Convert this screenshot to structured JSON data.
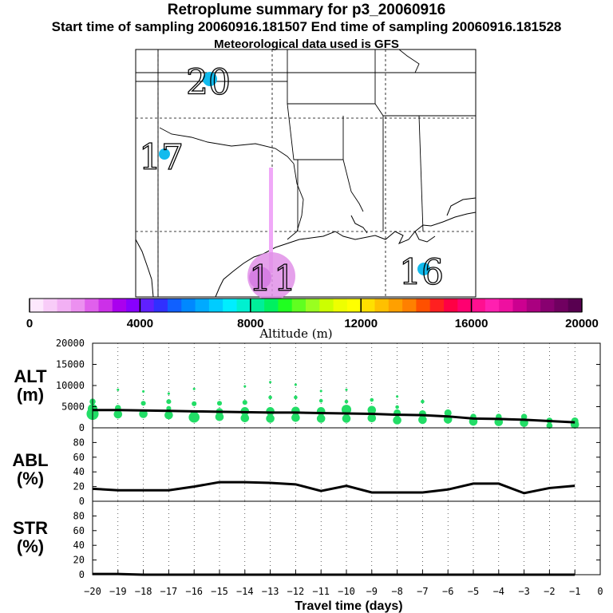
{
  "titles": {
    "main": "Retroplume summary for p3_20060916",
    "sampling": "Start time of sampling 20060916.181507     End time of sampling 20060916.181528",
    "met": "Meteorological data used is GFS"
  },
  "colors": {
    "plume_dot": "#22dd66",
    "line": "#000000",
    "label_dot": "#11bbee",
    "column": "#f0a8f8",
    "source_blob": "#e090e8"
  },
  "map": {
    "day_labels": [
      {
        "text": "20"
      },
      {
        "text": "17"
      },
      {
        "text": "16"
      },
      {
        "text": "1"
      },
      {
        "text": "1"
      }
    ]
  },
  "colorbar": {
    "ticks": [
      "0",
      "4000",
      "8000",
      "12000",
      "16000",
      "20000"
    ],
    "label": "Altitude (m)",
    "colors": [
      "#fde8fd",
      "#f8ccf8",
      "#f2b0f4",
      "#ec90f0",
      "#e060ec",
      "#cc30e8",
      "#aa00ee",
      "#8800ff",
      "#6020ff",
      "#3030ff",
      "#1060ff",
      "#0088ff",
      "#00aaff",
      "#00ccff",
      "#00eeff",
      "#00f0d0",
      "#00ee99",
      "#00f060",
      "#20ff20",
      "#60ff20",
      "#99ff20",
      "#ccff00",
      "#eeff00",
      "#ffff00",
      "#ffe000",
      "#ffc000",
      "#ffa000",
      "#ff8000",
      "#ff5000",
      "#ff2020",
      "#ff0044",
      "#ff0070",
      "#ff1090",
      "#ff20b0",
      "#ee10a0",
      "#cc0090",
      "#aa0080",
      "#880070",
      "#700060",
      "#580050"
    ]
  },
  "chart_data": [
    {
      "type": "scatter",
      "name": "alt",
      "ylabel": "ALT\n(m)",
      "ylabel_lines": [
        "ALT",
        "(m)"
      ],
      "yticks": [
        "20000",
        "15000",
        "10000",
        "5000",
        "0"
      ],
      "ylim": [
        0,
        20000
      ],
      "xlim": [
        -20,
        0
      ],
      "points": [
        {
          "x": -20,
          "y": 3300,
          "s": 9
        },
        {
          "x": -20,
          "y": 4500,
          "s": 7
        },
        {
          "x": -20,
          "y": 6200,
          "s": 4
        },
        {
          "x": -19,
          "y": 3200,
          "s": 6
        },
        {
          "x": -19,
          "y": 4700,
          "s": 4
        },
        {
          "x": -19,
          "y": 9000,
          "s": 1
        },
        {
          "x": -18,
          "y": 3300,
          "s": 6
        },
        {
          "x": -18,
          "y": 5800,
          "s": 3
        },
        {
          "x": -18,
          "y": 8600,
          "s": 1
        },
        {
          "x": -17,
          "y": 3000,
          "s": 6
        },
        {
          "x": -17,
          "y": 4600,
          "s": 3
        },
        {
          "x": -17,
          "y": 6200,
          "s": 3
        },
        {
          "x": -17,
          "y": 8100,
          "s": 1
        },
        {
          "x": -16,
          "y": 2500,
          "s": 8
        },
        {
          "x": -16,
          "y": 3300,
          "s": 5
        },
        {
          "x": -16,
          "y": 5700,
          "s": 3
        },
        {
          "x": -16,
          "y": 9200,
          "s": 1
        },
        {
          "x": -15,
          "y": 2600,
          "s": 6
        },
        {
          "x": -15,
          "y": 3800,
          "s": 5
        },
        {
          "x": -15,
          "y": 5800,
          "s": 3
        },
        {
          "x": -14,
          "y": 2300,
          "s": 6
        },
        {
          "x": -14,
          "y": 3900,
          "s": 6
        },
        {
          "x": -14,
          "y": 6000,
          "s": 3
        },
        {
          "x": -14,
          "y": 9800,
          "s": 1
        },
        {
          "x": -13,
          "y": 2200,
          "s": 6
        },
        {
          "x": -13,
          "y": 3900,
          "s": 6
        },
        {
          "x": -13,
          "y": 7200,
          "s": 2
        },
        {
          "x": -13,
          "y": 10800,
          "s": 1
        },
        {
          "x": -12,
          "y": 2400,
          "s": 6
        },
        {
          "x": -12,
          "y": 4000,
          "s": 6
        },
        {
          "x": -12,
          "y": 7200,
          "s": 2
        },
        {
          "x": -12,
          "y": 10200,
          "s": 1
        },
        {
          "x": -11,
          "y": 2200,
          "s": 6
        },
        {
          "x": -11,
          "y": 3900,
          "s": 6
        },
        {
          "x": -11,
          "y": 6400,
          "s": 2
        },
        {
          "x": -11,
          "y": 8700,
          "s": 1
        },
        {
          "x": -10,
          "y": 2200,
          "s": 6
        },
        {
          "x": -10,
          "y": 4300,
          "s": 7
        },
        {
          "x": -10,
          "y": 6200,
          "s": 2
        },
        {
          "x": -10,
          "y": 9000,
          "s": 1
        },
        {
          "x": -9,
          "y": 2300,
          "s": 6
        },
        {
          "x": -9,
          "y": 4200,
          "s": 6
        },
        {
          "x": -9,
          "y": 6600,
          "s": 2
        },
        {
          "x": -8,
          "y": 1800,
          "s": 6
        },
        {
          "x": -8,
          "y": 3500,
          "s": 5
        },
        {
          "x": -8,
          "y": 4900,
          "s": 2
        },
        {
          "x": -8,
          "y": 7400,
          "s": 1
        },
        {
          "x": -7,
          "y": 1900,
          "s": 6
        },
        {
          "x": -7,
          "y": 3300,
          "s": 5
        },
        {
          "x": -7,
          "y": 6200,
          "s": 2
        },
        {
          "x": -6,
          "y": 2000,
          "s": 6
        },
        {
          "x": -6,
          "y": 3500,
          "s": 5
        },
        {
          "x": -5,
          "y": 1500,
          "s": 6
        },
        {
          "x": -5,
          "y": 2600,
          "s": 4
        },
        {
          "x": -4,
          "y": 1400,
          "s": 6
        },
        {
          "x": -4,
          "y": 2600,
          "s": 4
        },
        {
          "x": -3,
          "y": 1200,
          "s": 6
        },
        {
          "x": -3,
          "y": 2600,
          "s": 4
        },
        {
          "x": -2,
          "y": 500,
          "s": 4
        },
        {
          "x": -2,
          "y": 1700,
          "s": 4
        },
        {
          "x": -1,
          "y": 800,
          "s": 6
        },
        {
          "x": -1,
          "y": 1600,
          "s": 5
        }
      ],
      "line": {
        "x": [
          -20,
          -19,
          -18,
          -17,
          -16,
          -15,
          -14,
          -13,
          -12,
          -11,
          -10,
          -9,
          -8,
          -7,
          -6,
          -5,
          -4,
          -3,
          -2,
          -1
        ],
        "y": [
          4200,
          4200,
          4100,
          4000,
          3900,
          3800,
          3700,
          3600,
          3600,
          3500,
          3400,
          3300,
          3100,
          3000,
          2700,
          2200,
          2100,
          1900,
          1600,
          1300
        ]
      }
    },
    {
      "type": "line",
      "name": "abl",
      "ylabel_lines": [
        "ABL",
        "(%)"
      ],
      "yticks": [
        "80",
        "60",
        "40",
        "20",
        "0"
      ],
      "ylim": [
        0,
        100
      ],
      "xlim": [
        -20,
        0
      ],
      "x": [
        -20,
        -19,
        -18,
        -17,
        -16,
        -15,
        -14,
        -13,
        -12,
        -11,
        -10,
        -9,
        -8,
        -7,
        -6,
        -5,
        -4,
        -3,
        -2,
        -1
      ],
      "values": [
        17,
        15,
        15,
        15,
        20,
        26,
        26,
        25,
        23,
        14,
        21,
        12,
        12,
        12,
        16,
        24,
        24,
        11,
        18,
        21
      ]
    },
    {
      "type": "line",
      "name": "str",
      "ylabel_lines": [
        "STR",
        "(%)"
      ],
      "yticks": [
        "80",
        "60",
        "40",
        "20",
        "0"
      ],
      "ylim": [
        0,
        100
      ],
      "xlim": [
        -20,
        0
      ],
      "x": [
        -20,
        -19,
        -18,
        -17,
        -16,
        -15,
        -14,
        -13,
        -12,
        -11,
        -10,
        -9,
        -8,
        -7,
        -6,
        -5,
        -4,
        -3,
        -2,
        -1
      ],
      "values": [
        1,
        1,
        0,
        0,
        0,
        0,
        0,
        0,
        0,
        0,
        0,
        0,
        0,
        0,
        0,
        0,
        0,
        0,
        0,
        0
      ]
    }
  ],
  "xaxis": {
    "ticks": [
      "−20",
      "−19",
      "−18",
      "−17",
      "−16",
      "−15",
      "−14",
      "−13",
      "−12",
      "−11",
      "−10",
      "−9",
      "−8",
      "−7",
      "−6",
      "−5",
      "−4",
      "−3",
      "−2",
      "−1",
      "0"
    ],
    "label": "Travel time (days)"
  }
}
